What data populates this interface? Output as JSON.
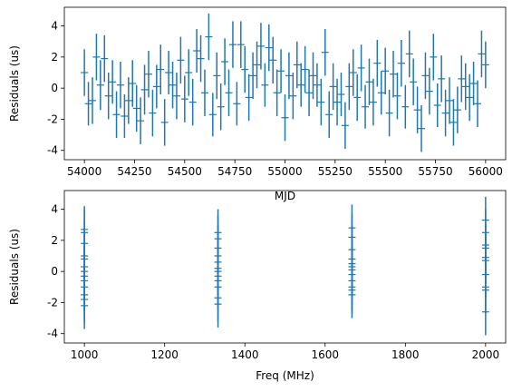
{
  "chart_data": [
    {
      "type": "scatter",
      "xlabel": "MJD",
      "ylabel": "Residuals (us)",
      "xlim": [
        53900,
        56100
      ],
      "ylim": [
        -4.6,
        5.2
      ],
      "xticks": [
        54000,
        54250,
        54500,
        54750,
        55000,
        55250,
        55500,
        55750,
        56000
      ],
      "yticks": [
        -4,
        -2,
        0,
        2,
        4
      ],
      "color": "#1f77b4",
      "grid": false,
      "error_bars": true,
      "points": [
        {
          "x": 54000,
          "y": 1.0,
          "err": 1.5
        },
        {
          "x": 54020,
          "y": -1.0,
          "err": 1.4
        },
        {
          "x": 54040,
          "y": -0.8,
          "err": 1.5
        },
        {
          "x": 54060,
          "y": 2.0,
          "err": 1.5
        },
        {
          "x": 54080,
          "y": 0.2,
          "err": 1.6
        },
        {
          "x": 54100,
          "y": 1.9,
          "err": 1.5
        },
        {
          "x": 54120,
          "y": -0.5,
          "err": 1.5
        },
        {
          "x": 54140,
          "y": 0.4,
          "err": 1.4
        },
        {
          "x": 54160,
          "y": -1.7,
          "err": 1.5
        },
        {
          "x": 54180,
          "y": 0.2,
          "err": 1.5
        },
        {
          "x": 54200,
          "y": -1.8,
          "err": 1.4
        },
        {
          "x": 54220,
          "y": -0.8,
          "err": 1.5
        },
        {
          "x": 54240,
          "y": 0.3,
          "err": 1.5
        },
        {
          "x": 54260,
          "y": -1.3,
          "err": 1.5
        },
        {
          "x": 54280,
          "y": -2.1,
          "err": 1.5
        },
        {
          "x": 54300,
          "y": -0.1,
          "err": 1.6
        },
        {
          "x": 54320,
          "y": 0.9,
          "err": 1.5
        },
        {
          "x": 54340,
          "y": -1.6,
          "err": 1.5
        },
        {
          "x": 54360,
          "y": 0.1,
          "err": 1.4
        },
        {
          "x": 54380,
          "y": 1.2,
          "err": 1.6
        },
        {
          "x": 54400,
          "y": -2.2,
          "err": 1.5
        },
        {
          "x": 54420,
          "y": 1.0,
          "err": 1.4
        },
        {
          "x": 54440,
          "y": 0.2,
          "err": 1.5
        },
        {
          "x": 54460,
          "y": -0.5,
          "err": 1.5
        },
        {
          "x": 54480,
          "y": 1.8,
          "err": 1.5
        },
        {
          "x": 54500,
          "y": -0.7,
          "err": 1.5
        },
        {
          "x": 54520,
          "y": 1.0,
          "err": 1.5
        },
        {
          "x": 54540,
          "y": -0.9,
          "err": 1.5
        },
        {
          "x": 54560,
          "y": 2.4,
          "err": 1.4
        },
        {
          "x": 54580,
          "y": 1.9,
          "err": 1.5
        },
        {
          "x": 54600,
          "y": -0.3,
          "err": 1.5
        },
        {
          "x": 54620,
          "y": 3.3,
          "err": 1.5
        },
        {
          "x": 54640,
          "y": -1.7,
          "err": 1.4
        },
        {
          "x": 54660,
          "y": 0.8,
          "err": 1.5
        },
        {
          "x": 54680,
          "y": -1.2,
          "err": 1.5
        },
        {
          "x": 54700,
          "y": 1.7,
          "err": 1.5
        },
        {
          "x": 54720,
          "y": -0.3,
          "err": 1.5
        },
        {
          "x": 54740,
          "y": 2.8,
          "err": 1.5
        },
        {
          "x": 54760,
          "y": -1.0,
          "err": 1.4
        },
        {
          "x": 54780,
          "y": 2.8,
          "err": 1.5
        },
        {
          "x": 54800,
          "y": 1.2,
          "err": 1.5
        },
        {
          "x": 54820,
          "y": -0.6,
          "err": 1.5
        },
        {
          "x": 54840,
          "y": 0.8,
          "err": 1.5
        },
        {
          "x": 54860,
          "y": 1.5,
          "err": 1.5
        },
        {
          "x": 54880,
          "y": 2.7,
          "err": 1.5
        },
        {
          "x": 54900,
          "y": 0.2,
          "err": 1.4
        },
        {
          "x": 54920,
          "y": 2.6,
          "err": 1.5
        },
        {
          "x": 54940,
          "y": 1.8,
          "err": 1.5
        },
        {
          "x": 54960,
          "y": -0.3,
          "err": 1.5
        },
        {
          "x": 54980,
          "y": 1.1,
          "err": 1.4
        },
        {
          "x": 55000,
          "y": -1.9,
          "err": 1.5
        },
        {
          "x": 55020,
          "y": 0.8,
          "err": 1.5
        },
        {
          "x": 55040,
          "y": -0.5,
          "err": 1.5
        },
        {
          "x": 55060,
          "y": 1.5,
          "err": 1.5
        },
        {
          "x": 55080,
          "y": 0.2,
          "err": 1.4
        },
        {
          "x": 55100,
          "y": 1.2,
          "err": 1.5
        },
        {
          "x": 55120,
          "y": -0.3,
          "err": 1.5
        },
        {
          "x": 55140,
          "y": 0.8,
          "err": 1.5
        },
        {
          "x": 55160,
          "y": 0.2,
          "err": 1.4
        },
        {
          "x": 55180,
          "y": -0.9,
          "err": 1.5
        },
        {
          "x": 55200,
          "y": 2.3,
          "err": 1.5
        },
        {
          "x": 55220,
          "y": -1.7,
          "err": 1.5
        },
        {
          "x": 55240,
          "y": 0.1,
          "err": 1.5
        },
        {
          "x": 55260,
          "y": -0.9,
          "err": 1.5
        },
        {
          "x": 55280,
          "y": -0.4,
          "err": 1.4
        },
        {
          "x": 55300,
          "y": -2.4,
          "err": 1.5
        },
        {
          "x": 55320,
          "y": 0.1,
          "err": 1.5
        },
        {
          "x": 55340,
          "y": 1.0,
          "err": 1.5
        },
        {
          "x": 55360,
          "y": -0.6,
          "err": 1.5
        },
        {
          "x": 55380,
          "y": 1.3,
          "err": 1.5
        },
        {
          "x": 55400,
          "y": -1.2,
          "err": 1.4
        },
        {
          "x": 55420,
          "y": 0.4,
          "err": 1.5
        },
        {
          "x": 55440,
          "y": -0.9,
          "err": 1.5
        },
        {
          "x": 55460,
          "y": 1.6,
          "err": 1.5
        },
        {
          "x": 55480,
          "y": -0.3,
          "err": 1.4
        },
        {
          "x": 55500,
          "y": 1.1,
          "err": 1.5
        },
        {
          "x": 55520,
          "y": -1.6,
          "err": 1.5
        },
        {
          "x": 55540,
          "y": 0.9,
          "err": 1.5
        },
        {
          "x": 55560,
          "y": -0.5,
          "err": 1.5
        },
        {
          "x": 55580,
          "y": 1.6,
          "err": 1.5
        },
        {
          "x": 55600,
          "y": -1.2,
          "err": 1.4
        },
        {
          "x": 55620,
          "y": 2.2,
          "err": 1.5
        },
        {
          "x": 55640,
          "y": 0.4,
          "err": 1.5
        },
        {
          "x": 55660,
          "y": -1.4,
          "err": 1.5
        },
        {
          "x": 55680,
          "y": -2.6,
          "err": 1.5
        },
        {
          "x": 55700,
          "y": 0.8,
          "err": 1.5
        },
        {
          "x": 55720,
          "y": -0.2,
          "err": 1.5
        },
        {
          "x": 55740,
          "y": 2.0,
          "err": 1.5
        },
        {
          "x": 55760,
          "y": -1.1,
          "err": 1.4
        },
        {
          "x": 55780,
          "y": 0.6,
          "err": 1.5
        },
        {
          "x": 55800,
          "y": -1.6,
          "err": 1.5
        },
        {
          "x": 55820,
          "y": -0.8,
          "err": 1.5
        },
        {
          "x": 55840,
          "y": -2.2,
          "err": 1.5
        },
        {
          "x": 55860,
          "y": -1.4,
          "err": 1.5
        },
        {
          "x": 55880,
          "y": 0.6,
          "err": 1.5
        },
        {
          "x": 55900,
          "y": 0.1,
          "err": 1.5
        },
        {
          "x": 55920,
          "y": -0.6,
          "err": 1.5
        },
        {
          "x": 55940,
          "y": 0.3,
          "err": 1.4
        },
        {
          "x": 55960,
          "y": -1.0,
          "err": 1.5
        },
        {
          "x": 55980,
          "y": 2.2,
          "err": 1.5
        },
        {
          "x": 56000,
          "y": 1.5,
          "err": 1.5
        }
      ]
    },
    {
      "type": "scatter",
      "xlabel": "Freq (MHz)",
      "ylabel": "Residuals (us)",
      "xlim": [
        950,
        2050
      ],
      "ylim": [
        -4.6,
        5.2
      ],
      "xticks": [
        1000,
        1200,
        1400,
        1600,
        1800,
        2000
      ],
      "yticks": [
        -4,
        -2,
        0,
        2,
        4
      ],
      "color": "#1f77b4",
      "grid": false,
      "error_bars": true,
      "points": [
        {
          "x": 1000,
          "y": 2.7,
          "err": 1.5
        },
        {
          "x": 1000,
          "y": 2.5,
          "err": 1.5
        },
        {
          "x": 1000,
          "y": 1.8,
          "err": 1.5
        },
        {
          "x": 1000,
          "y": 1.0,
          "err": 1.5
        },
        {
          "x": 1000,
          "y": 0.8,
          "err": 1.5
        },
        {
          "x": 1000,
          "y": 0.3,
          "err": 1.5
        },
        {
          "x": 1000,
          "y": 0.0,
          "err": 1.5
        },
        {
          "x": 1000,
          "y": -0.3,
          "err": 1.5
        },
        {
          "x": 1000,
          "y": -0.6,
          "err": 1.5
        },
        {
          "x": 1000,
          "y": -1.0,
          "err": 1.5
        },
        {
          "x": 1000,
          "y": -1.5,
          "err": 1.5
        },
        {
          "x": 1000,
          "y": -1.8,
          "err": 1.5
        },
        {
          "x": 1000,
          "y": -2.2,
          "err": 1.5
        },
        {
          "x": 1333,
          "y": 2.5,
          "err": 1.5
        },
        {
          "x": 1333,
          "y": 2.1,
          "err": 1.5
        },
        {
          "x": 1333,
          "y": 1.5,
          "err": 1.5
        },
        {
          "x": 1333,
          "y": 1.0,
          "err": 1.5
        },
        {
          "x": 1333,
          "y": 0.6,
          "err": 1.5
        },
        {
          "x": 1333,
          "y": 0.2,
          "err": 1.5
        },
        {
          "x": 1333,
          "y": 0.0,
          "err": 1.5
        },
        {
          "x": 1333,
          "y": -0.3,
          "err": 1.5
        },
        {
          "x": 1333,
          "y": -0.6,
          "err": 1.5
        },
        {
          "x": 1333,
          "y": -1.0,
          "err": 1.5
        },
        {
          "x": 1333,
          "y": -1.7,
          "err": 1.5
        },
        {
          "x": 1333,
          "y": -2.1,
          "err": 1.5
        },
        {
          "x": 1667,
          "y": 2.8,
          "err": 1.5
        },
        {
          "x": 1667,
          "y": 2.2,
          "err": 1.5
        },
        {
          "x": 1667,
          "y": 1.4,
          "err": 1.5
        },
        {
          "x": 1667,
          "y": 0.8,
          "err": 1.5
        },
        {
          "x": 1667,
          "y": 0.5,
          "err": 1.5
        },
        {
          "x": 1667,
          "y": 0.3,
          "err": 1.5
        },
        {
          "x": 1667,
          "y": 0.1,
          "err": 1.5
        },
        {
          "x": 1667,
          "y": -0.2,
          "err": 1.5
        },
        {
          "x": 1667,
          "y": -0.6,
          "err": 1.5
        },
        {
          "x": 1667,
          "y": -1.0,
          "err": 1.5
        },
        {
          "x": 1667,
          "y": -1.2,
          "err": 1.5
        },
        {
          "x": 1667,
          "y": -1.5,
          "err": 1.5
        },
        {
          "x": 2000,
          "y": 3.3,
          "err": 1.5
        },
        {
          "x": 2000,
          "y": 2.5,
          "err": 1.5
        },
        {
          "x": 2000,
          "y": 1.7,
          "err": 1.5
        },
        {
          "x": 2000,
          "y": 1.5,
          "err": 1.5
        },
        {
          "x": 2000,
          "y": 0.9,
          "err": 1.5
        },
        {
          "x": 2000,
          "y": 0.7,
          "err": 1.5
        },
        {
          "x": 2000,
          "y": -0.2,
          "err": 1.5
        },
        {
          "x": 2000,
          "y": -1.0,
          "err": 1.5
        },
        {
          "x": 2000,
          "y": -1.2,
          "err": 1.5
        },
        {
          "x": 2000,
          "y": -2.6,
          "err": 1.5
        }
      ]
    }
  ]
}
